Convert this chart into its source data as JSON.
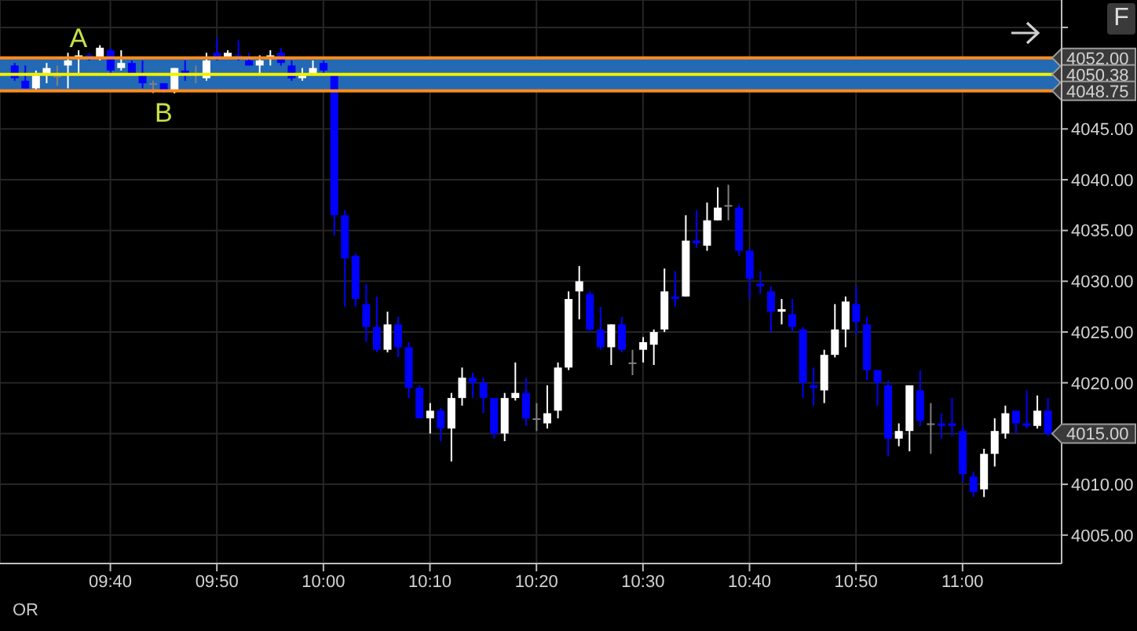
{
  "chart_data": {
    "type": "candlestick",
    "x": [
      9.5167,
      9.5333,
      9.55,
      9.5667,
      9.5833,
      9.6,
      9.6167,
      9.6333,
      9.65,
      9.6667,
      9.6833,
      9.7,
      9.7167,
      9.7333,
      9.75,
      9.7667,
      9.7833,
      9.8,
      9.8167,
      9.8333,
      9.85,
      9.8667,
      9.8833,
      9.9,
      9.9167,
      9.9333,
      9.95,
      9.9667,
      9.9833,
      10,
      10.0167,
      10.0333,
      10.05,
      10.0667,
      10.0833,
      10.1,
      10.1167,
      10.1333,
      10.15,
      10.1667,
      10.1833,
      10.2,
      10.2167,
      10.2333,
      10.25,
      10.2667,
      10.2833,
      10.3,
      10.3167,
      10.3333,
      10.35,
      10.3667,
      10.3833,
      10.4,
      10.4167,
      10.4333,
      10.45,
      10.4667,
      10.4833,
      10.5,
      10.5167,
      10.5333,
      10.55,
      10.5667,
      10.5833,
      10.6,
      10.6167,
      10.6333,
      10.65,
      10.6667,
      10.6833,
      10.7,
      10.7167,
      10.7333,
      10.75,
      10.7667,
      10.7833,
      10.8,
      10.8167,
      10.8333,
      10.85,
      10.8667,
      10.8833,
      10.9,
      10.9167,
      10.9333,
      10.95,
      10.9667,
      10.9833,
      11,
      11.0167,
      11.0333,
      11.05,
      11.0667,
      11.0833,
      11.1,
      11.1167,
      11.1333
    ],
    "ohlc": [
      [
        4051.25,
        4051.5,
        4049.75,
        4050.0
      ],
      [
        4049.75,
        4051.25,
        4049.0,
        4049.0
      ],
      [
        4049.0,
        4050.75,
        4048.75,
        4050.25
      ],
      [
        4050.5,
        4051.5,
        4049.5,
        4051.0
      ],
      [
        4050.25,
        4051.25,
        4049.25,
        4050.25
      ],
      [
        4051.25,
        4052.5,
        4049.0,
        4051.75
      ],
      [
        4052.0,
        4052.75,
        4050.5,
        4052.25
      ],
      [
        4052.25,
        4052.5,
        4051.75,
        4052.0
      ],
      [
        4052.0,
        4053.25,
        4051.75,
        4053.0
      ],
      [
        4052.75,
        4053.0,
        4050.5,
        4050.75
      ],
      [
        4051.0,
        4052.75,
        4050.75,
        4051.5
      ],
      [
        4051.5,
        4051.75,
        4050.5,
        4050.5
      ],
      [
        4050.25,
        4051.75,
        4049.0,
        4049.5
      ],
      [
        4049.5,
        4049.75,
        4048.5,
        4049.5
      ],
      [
        4049.5,
        4049.5,
        4048.5,
        4048.75
      ],
      [
        4048.75,
        4051.0,
        4048.5,
        4051.0
      ],
      [
        4050.75,
        4051.75,
        4049.75,
        4050.5
      ],
      [
        4050.5,
        4051.25,
        4049.5,
        4050.5
      ],
      [
        4050.0,
        4052.5,
        4049.75,
        4051.75
      ],
      [
        4052.5,
        4054.0,
        4051.75,
        4052.0
      ],
      [
        4052.0,
        4052.75,
        4052.0,
        4052.5
      ],
      [
        4052.25,
        4053.75,
        4051.75,
        4052.0
      ],
      [
        4051.75,
        4052.5,
        4051.25,
        4051.25
      ],
      [
        4051.25,
        4052.25,
        4050.5,
        4051.75
      ],
      [
        4052.0,
        4052.75,
        4051.25,
        4052.25
      ],
      [
        4052.5,
        4053.0,
        4051.25,
        4051.5
      ],
      [
        4051.25,
        4051.75,
        4049.75,
        4050.0
      ],
      [
        4050.0,
        4051.0,
        4049.75,
        4050.25
      ],
      [
        4050.5,
        4051.75,
        4050.5,
        4051.0
      ],
      [
        4051.5,
        4051.75,
        4050.5,
        4050.75
      ],
      [
        4050.25,
        4050.5,
        4034.5,
        4036.5
      ],
      [
        4036.5,
        4037.0,
        4027.5,
        4032.25
      ],
      [
        4032.5,
        4032.75,
        4027.5,
        4028.25
      ],
      [
        4027.75,
        4029.75,
        4024.0,
        4025.5
      ],
      [
        4025.5,
        4028.5,
        4023.0,
        4023.25
      ],
      [
        4023.25,
        4027.0,
        4023.0,
        4025.75
      ],
      [
        4025.75,
        4026.5,
        4022.5,
        4023.5
      ],
      [
        4023.5,
        4024.0,
        4018.5,
        4019.5
      ],
      [
        4019.5,
        4019.75,
        4016.5,
        4016.5
      ],
      [
        4016.5,
        4018.0,
        4015.0,
        4017.25
      ],
      [
        4017.25,
        4017.5,
        4014.25,
        4015.5
      ],
      [
        4015.5,
        4019.0,
        4012.25,
        4018.5
      ],
      [
        4018.5,
        4021.5,
        4017.75,
        4020.5
      ],
      [
        4020.5,
        4021.0,
        4018.5,
        4020.0
      ],
      [
        4020.0,
        4020.5,
        4017.0,
        4018.5
      ],
      [
        4018.5,
        4018.5,
        4014.5,
        4015.0
      ],
      [
        4015.0,
        4019.0,
        4014.25,
        4018.5
      ],
      [
        4018.5,
        4022.0,
        4018.25,
        4019.0
      ],
      [
        4019.0,
        4020.5,
        4015.75,
        4016.5
      ],
      [
        4016.5,
        4018.0,
        4015.25,
        4016.5
      ],
      [
        4016.0,
        4019.75,
        4015.5,
        4017.0
      ],
      [
        4017.25,
        4022.0,
        4016.5,
        4021.5
      ],
      [
        4021.5,
        4029.0,
        4021.25,
        4028.25
      ],
      [
        4029.0,
        4031.5,
        4026.25,
        4030.0
      ],
      [
        4028.75,
        4029.0,
        4025.0,
        4025.25
      ],
      [
        4025.25,
        4027.5,
        4023.25,
        4023.5
      ],
      [
        4023.5,
        4025.75,
        4021.75,
        4025.75
      ],
      [
        4025.75,
        4026.5,
        4023.0,
        4023.25
      ],
      [
        4022.0,
        4023.25,
        4020.75,
        4022.0
      ],
      [
        4023.25,
        4024.5,
        4022.0,
        4024.0
      ],
      [
        4023.75,
        4025.25,
        4021.75,
        4025.0
      ],
      [
        4025.25,
        4031.25,
        4025.0,
        4029.0
      ],
      [
        4028.5,
        4031.0,
        4027.5,
        4028.25
      ],
      [
        4028.5,
        4036.5,
        4028.5,
        4034.0
      ],
      [
        4034.0,
        4037.0,
        4033.25,
        4033.75
      ],
      [
        4033.5,
        4037.75,
        4033.0,
        4036.0
      ],
      [
        4036.0,
        4039.25,
        4036.0,
        4037.25
      ],
      [
        4037.5,
        4039.5,
        4036.0,
        4037.5
      ],
      [
        4037.25,
        4037.5,
        4032.5,
        4033.0
      ],
      [
        4033.0,
        4033.25,
        4028.25,
        4030.25
      ],
      [
        4029.75,
        4031.0,
        4028.75,
        4029.5
      ],
      [
        4029.0,
        4029.5,
        4025.0,
        4027.0
      ],
      [
        4027.0,
        4028.25,
        4025.75,
        4027.25
      ],
      [
        4026.75,
        4028.25,
        4025.0,
        4025.5
      ],
      [
        4025.25,
        4025.5,
        4018.5,
        4020.0
      ],
      [
        4019.75,
        4021.5,
        4017.75,
        4019.5
      ],
      [
        4019.25,
        4023.25,
        4018.0,
        4022.75
      ],
      [
        4022.75,
        4027.75,
        4022.5,
        4025.25
      ],
      [
        4025.25,
        4028.5,
        4023.5,
        4028.0
      ],
      [
        4027.75,
        4029.5,
        4024.75,
        4026.0
      ],
      [
        4025.75,
        4026.5,
        4020.25,
        4021.25
      ],
      [
        4021.25,
        4021.25,
        4017.75,
        4020.0
      ],
      [
        4019.75,
        4020.25,
        4012.75,
        4014.5
      ],
      [
        4014.5,
        4016.0,
        4013.75,
        4015.25
      ],
      [
        4015.25,
        4019.75,
        4013.25,
        4019.75
      ],
      [
        4019.25,
        4021.25,
        4015.75,
        4016.25
      ],
      [
        4016.0,
        4018.0,
        4013.0,
        4016.0
      ],
      [
        4016.0,
        4017.0,
        4014.5,
        4015.75
      ],
      [
        4016.0,
        4018.5,
        4014.75,
        4015.75
      ],
      [
        4015.25,
        4015.75,
        4010.25,
        4011.0
      ],
      [
        4010.75,
        4011.25,
        4008.75,
        4009.25
      ],
      [
        4009.5,
        4013.5,
        4008.75,
        4013.0
      ],
      [
        4013.0,
        4016.5,
        4011.75,
        4015.25
      ],
      [
        4015.0,
        4017.75,
        4014.5,
        4017.0
      ],
      [
        4017.25,
        4017.25,
        4015.0,
        4016.0
      ],
      [
        4016.0,
        4019.25,
        4015.5,
        4015.75
      ],
      [
        4015.75,
        4018.75,
        4015.5,
        4017.25
      ],
      [
        4017.25,
        4018.5,
        4014.75,
        4015.0
      ]
    ],
    "colors": [
      "#0000ff",
      "#0000ff",
      "#ffffff",
      "#ffffff",
      "#808080",
      "#ffffff",
      "#ffffff",
      "#0000ff",
      "#ffffff",
      "#0000ff",
      "#ffffff",
      "#0000ff",
      "#0000ff",
      "#808080",
      "#0000ff",
      "#ffffff",
      "#0000ff",
      "#808080",
      "#ffffff",
      "#0000ff",
      "#ffffff",
      "#0000ff",
      "#0000ff",
      "#ffffff",
      "#ffffff",
      "#0000ff",
      "#0000ff",
      "#ffffff",
      "#ffffff",
      "#0000ff",
      "#0000ff",
      "#0000ff",
      "#0000ff",
      "#0000ff",
      "#0000ff",
      "#ffffff",
      "#0000ff",
      "#0000ff",
      "#0000ff",
      "#ffffff",
      "#0000ff",
      "#ffffff",
      "#ffffff",
      "#0000ff",
      "#0000ff",
      "#0000ff",
      "#ffffff",
      "#ffffff",
      "#0000ff",
      "#808080",
      "#ffffff",
      "#ffffff",
      "#ffffff",
      "#ffffff",
      "#0000ff",
      "#0000ff",
      "#ffffff",
      "#0000ff",
      "#808080",
      "#ffffff",
      "#ffffff",
      "#ffffff",
      "#0000ff",
      "#ffffff",
      "#0000ff",
      "#ffffff",
      "#ffffff",
      "#808080",
      "#0000ff",
      "#0000ff",
      "#0000ff",
      "#0000ff",
      "#ffffff",
      "#0000ff",
      "#0000ff",
      "#0000ff",
      "#ffffff",
      "#ffffff",
      "#ffffff",
      "#0000ff",
      "#0000ff",
      "#0000ff",
      "#0000ff",
      "#ffffff",
      "#ffffff",
      "#0000ff",
      "#808080",
      "#0000ff",
      "#0000ff",
      "#0000ff",
      "#0000ff",
      "#ffffff",
      "#ffffff",
      "#ffffff",
      "#0000ff",
      "#0000ff",
      "#ffffff",
      "#0000ff"
    ],
    "xlim": [
      9.494,
      11.155
    ],
    "xticks": [
      {
        "value": 9.6667,
        "label": "09:40"
      },
      {
        "value": 9.8333,
        "label": "09:50"
      },
      {
        "value": 10,
        "label": "10:00"
      },
      {
        "value": 10.1667,
        "label": "10:10"
      },
      {
        "value": 10.3333,
        "label": "10:20"
      },
      {
        "value": 10.5,
        "label": "10:30"
      },
      {
        "value": 10.6667,
        "label": "10:40"
      },
      {
        "value": 10.8333,
        "label": "10:50"
      },
      {
        "value": 11,
        "label": "11:00"
      }
    ],
    "ylim": [
      4002.2,
      4057.7
    ],
    "yticks": [
      {
        "value": 4005,
        "label": "4005.00"
      },
      {
        "value": 4010,
        "label": "4010.00"
      },
      {
        "value": 4015,
        "label": null
      },
      {
        "value": 4020,
        "label": "4020.00"
      },
      {
        "value": 4025,
        "label": "4025.00"
      },
      {
        "value": 4030,
        "label": "4030.00"
      },
      {
        "value": 4035,
        "label": "4035.00"
      },
      {
        "value": 4040,
        "label": "4040.00"
      },
      {
        "value": 4045,
        "label": "4045.00"
      },
      {
        "value": 4055,
        "label": null
      }
    ],
    "grid": true,
    "bands": [
      {
        "axis": "y",
        "from": 4048.75,
        "to": 4052,
        "color": "#2369b4"
      }
    ],
    "ref_lines": [
      {
        "axis": "y",
        "value": 4052,
        "label": "4052.00",
        "color": "#ff8c1a"
      },
      {
        "axis": "y",
        "value": 4050.38,
        "label": "4050.38",
        "color": "#f0f000"
      },
      {
        "axis": "y",
        "value": 4048.75,
        "label": "4048.75",
        "color": "#ff8c1a"
      }
    ],
    "annotations": [
      {
        "text": "A",
        "x": 9.6167,
        "y": 4052.75
      },
      {
        "text": "B",
        "x": 9.75,
        "y": 4048.5
      },
      {
        "text": "4015.00",
        "x": 11.1333,
        "y": 4015
      },
      "F",
      "OR"
    ]
  }
}
